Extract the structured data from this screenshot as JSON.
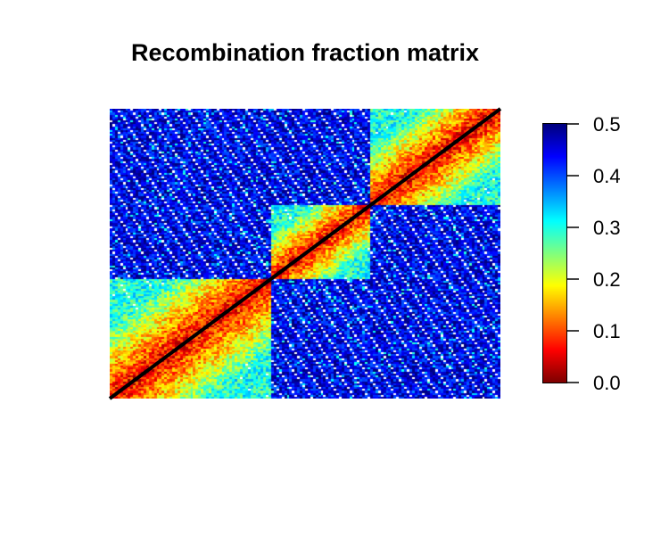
{
  "chart_data": {
    "type": "heatmap",
    "title": "Recombination fraction matrix",
    "xlabel": "",
    "ylabel": "",
    "grid": false,
    "n_markers": 150,
    "linkage_groups": [
      {
        "group": 1,
        "marker_range": [
          1,
          62
        ]
      },
      {
        "group": 2,
        "marker_range": [
          63,
          100
        ]
      },
      {
        "group": 3,
        "marker_range": [
          101,
          150
        ]
      }
    ],
    "diagonal_line": true,
    "value_summary": {
      "within_group_near_diagonal": 0.05,
      "within_group_far_from_diagonal": 0.3,
      "between_groups": 0.45
    },
    "colorbar": {
      "position": "right",
      "range": [
        0.0,
        0.5
      ],
      "ticks": [
        "0.0",
        "0.1",
        "0.2",
        "0.3",
        "0.4",
        "0.5"
      ],
      "colors": [
        "#7f0000",
        "#ff0000",
        "#ff7f00",
        "#ffff00",
        "#7fff7f",
        "#00ffff",
        "#007fff",
        "#0000ff",
        "#00007f"
      ]
    }
  }
}
